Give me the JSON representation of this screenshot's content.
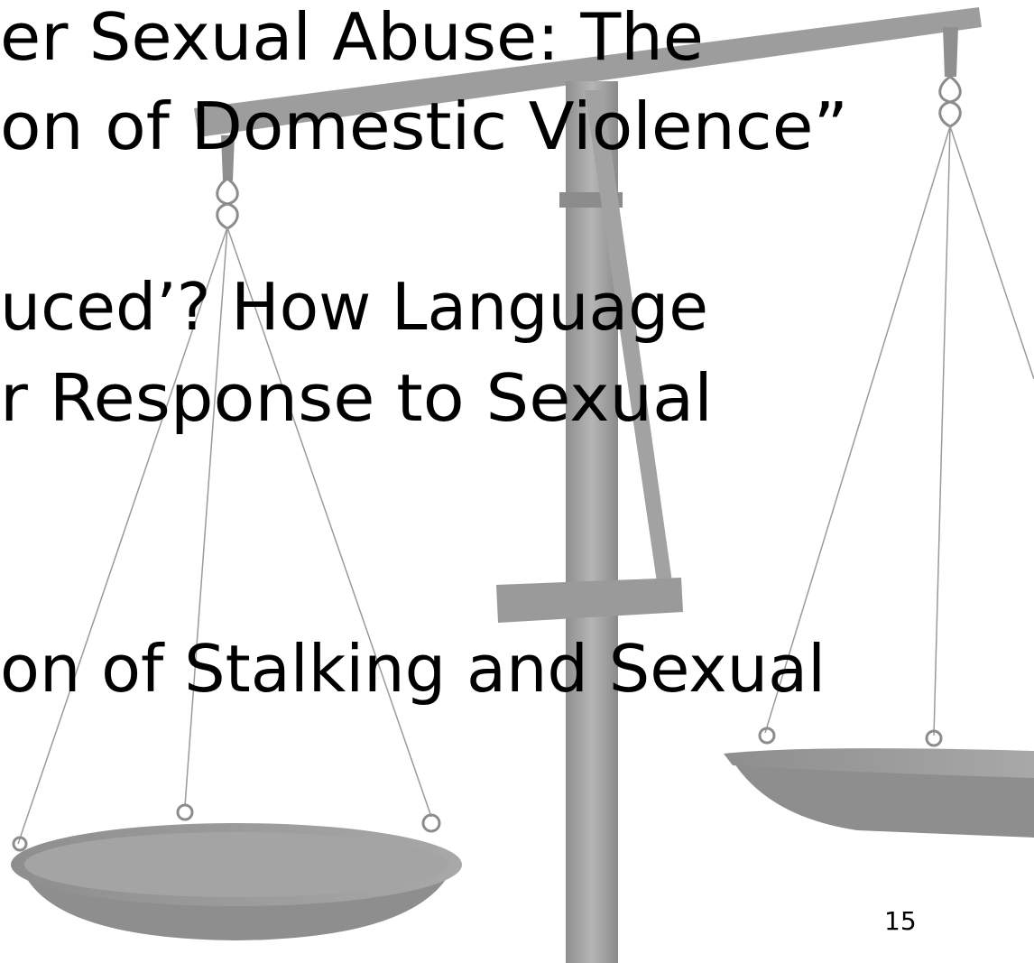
{
  "lines": [
    "er Sexual Abuse: The",
    "on of Domestic Violence”",
    "uced’? How Language",
    "r Response to Sexual",
    "on of Stalking and Sexual"
  ],
  "page_number": "15"
}
